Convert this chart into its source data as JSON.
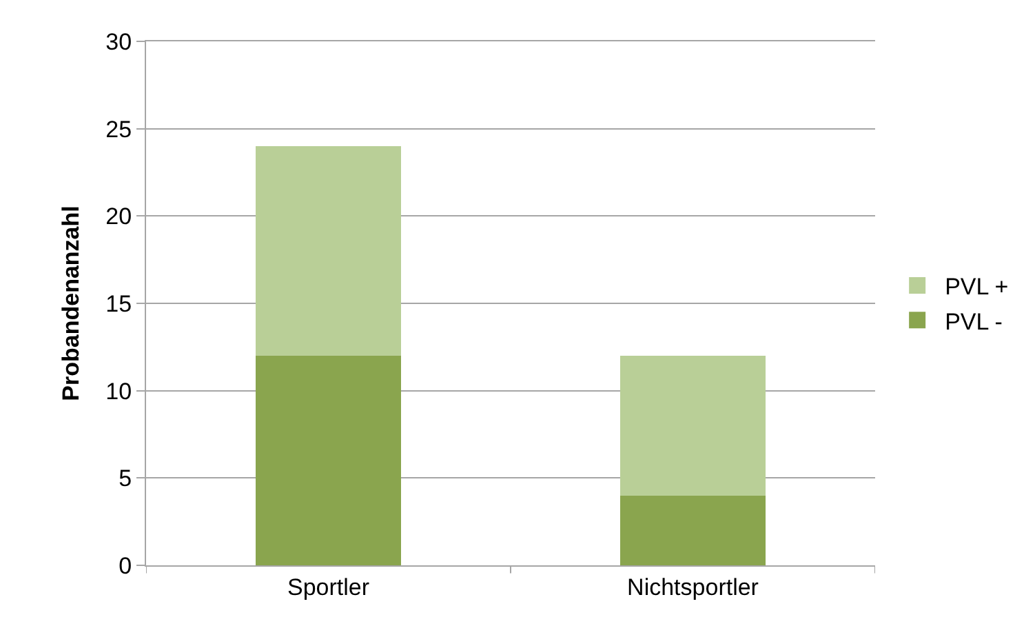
{
  "chart_data": {
    "type": "bar",
    "stacked": true,
    "ylabel": "Probandenanzahl",
    "categories": [
      "Sportler",
      "Nichtsportler"
    ],
    "series": [
      {
        "name": "PVL -",
        "color": "#8aa54e",
        "values": [
          12,
          4
        ]
      },
      {
        "name": "PVL +",
        "color": "#b9cf97",
        "values": [
          12,
          8
        ]
      }
    ],
    "ylim": [
      0,
      30
    ],
    "yticks": [
      0,
      5,
      10,
      15,
      20,
      25,
      30
    ],
    "grid": "y",
    "legend": "right"
  }
}
